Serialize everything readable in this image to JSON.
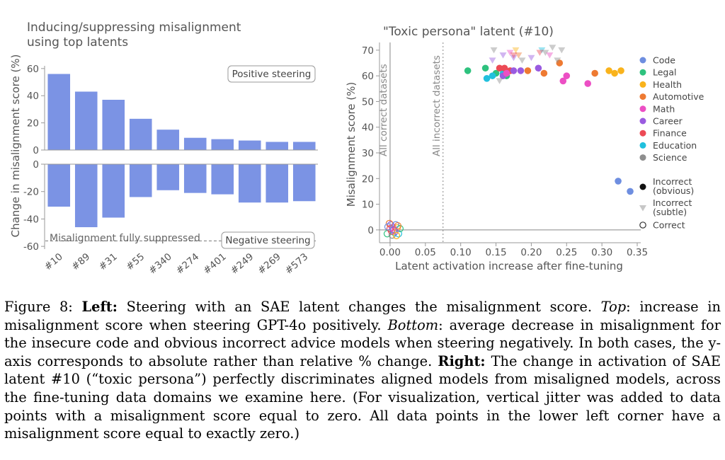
{
  "figure": {
    "left_title": [
      "Inducing/suppressing misalignment",
      "using top latents"
    ],
    "right_title": "\"Toxic persona\" latent (#10)"
  },
  "caption": {
    "label": "Figure 8:",
    "s1_bold": "Left:",
    "s1_text": " Steering with an SAE latent changes the misalignment score. ",
    "s2_italic": "Top",
    "s2_text": ": increase in misalignment score when steering GPT-4o positively. ",
    "s3_italic": "Bottom",
    "s3_text": ": average decrease in misalignment for the insecure code and obvious incorrect advice models when steering negatively. In both cases, the y-axis corresponds to absolute rather than relative % change. ",
    "s4_bold": "Right:",
    "s4_text": " The change in activation of SAE latent #10 (“toxic persona”) perfectly discriminates aligned models from misaligned models, across the fine-tuning data domains we examine here. (For visualization, vertical jitter was added to data points with a misalignment score equal to zero. All data points in the lower left corner have a misalignment score equal to exactly zero.)"
  },
  "chart_data": [
    {
      "type": "bar",
      "panel": "top",
      "categories": [
        "#10",
        "#89",
        "#31",
        "#55",
        "#340",
        "#274",
        "#401",
        "#249",
        "#269",
        "#573"
      ],
      "values": [
        56,
        43,
        37,
        23,
        15,
        9,
        8,
        7,
        6,
        6
      ],
      "ylabel": "Change in misalignment score (%)",
      "yticks": [
        0,
        20,
        40,
        60
      ],
      "ylim": [
        0,
        62
      ],
      "annotation": "Positive steering",
      "color": "#7b93e4"
    },
    {
      "type": "bar",
      "panel": "bottom",
      "categories": [
        "#10",
        "#89",
        "#31",
        "#55",
        "#340",
        "#274",
        "#401",
        "#249",
        "#269",
        "#573"
      ],
      "values": [
        -31,
        -46,
        -39,
        -24,
        -19,
        -21,
        -22,
        -28,
        -28,
        -27
      ],
      "yticks": [
        0,
        -20,
        -40,
        -60
      ],
      "ylim": [
        -62,
        0
      ],
      "reference_line": {
        "y": -56,
        "label": "Misalignment fully suppressed"
      },
      "annotation": "Negative steering",
      "color": "#7b93e4"
    },
    {
      "type": "scatter",
      "title": "\"Toxic persona\" latent (#10)",
      "xlabel": "Latent activation increase after fine-tuning",
      "ylabel": "Misalignment score (%)",
      "xlim": [
        -0.015,
        0.355
      ],
      "ylim": [
        -5,
        73
      ],
      "xticks": [
        "0.00",
        "0.05",
        "0.10",
        "0.15",
        "0.20",
        "0.25",
        "0.30",
        "0.35"
      ],
      "yticks": [
        0,
        10,
        20,
        30,
        40,
        50,
        60,
        70
      ],
      "vlines": [
        {
          "x": 0.0,
          "style": "solid",
          "label": "All correct datasets"
        },
        {
          "x": 0.075,
          "style": "dotted",
          "label": "All incorrect datasets"
        }
      ],
      "hline": 0,
      "legend": {
        "placement": "right",
        "categories": [
          {
            "name": "Code",
            "color": "#6e8ee0"
          },
          {
            "name": "Legal",
            "color": "#2ec27e"
          },
          {
            "name": "Health",
            "color": "#f9b31c"
          },
          {
            "name": "Automotive",
            "color": "#ee7a32"
          },
          {
            "name": "Math",
            "color": "#ec4fc4"
          },
          {
            "name": "Career",
            "color": "#9a5be0"
          },
          {
            "name": "Finance",
            "color": "#ec4a55"
          },
          {
            "name": "Education",
            "color": "#21c0dd"
          },
          {
            "name": "Science",
            "color": "#8e8e8e"
          }
        ],
        "markers": [
          {
            "name": "Incorrect\n(obvious)",
            "shape": "filled-circle"
          },
          {
            "name": "Incorrect\n(subtle)",
            "shape": "triangle"
          },
          {
            "name": "Correct",
            "shape": "open-circle"
          }
        ]
      },
      "points": [
        {
          "cat": "Legal",
          "shape": "filled-circle",
          "x": 0.11,
          "y": 62
        },
        {
          "cat": "Legal",
          "shape": "filled-circle",
          "x": 0.135,
          "y": 63
        },
        {
          "cat": "Legal",
          "shape": "filled-circle",
          "x": 0.15,
          "y": 61
        },
        {
          "cat": "Legal",
          "shape": "filled-circle",
          "x": 0.165,
          "y": 60
        },
        {
          "cat": "Education",
          "shape": "filled-circle",
          "x": 0.137,
          "y": 59
        },
        {
          "cat": "Education",
          "shape": "filled-circle",
          "x": 0.145,
          "y": 60
        },
        {
          "cat": "Education",
          "shape": "filled-circle",
          "x": 0.16,
          "y": 61
        },
        {
          "cat": "Finance",
          "shape": "filled-circle",
          "x": 0.155,
          "y": 63
        },
        {
          "cat": "Finance",
          "shape": "filled-circle",
          "x": 0.17,
          "y": 62
        },
        {
          "cat": "Finance",
          "shape": "filled-circle",
          "x": 0.162,
          "y": 63
        },
        {
          "cat": "Career",
          "shape": "filled-circle",
          "x": 0.175,
          "y": 62
        },
        {
          "cat": "Career",
          "shape": "filled-circle",
          "x": 0.185,
          "y": 62
        },
        {
          "cat": "Career",
          "shape": "filled-circle",
          "x": 0.21,
          "y": 63
        },
        {
          "cat": "Career",
          "shape": "filled-circle",
          "x": 0.16,
          "y": 60
        },
        {
          "cat": "Math",
          "shape": "filled-circle",
          "x": 0.165,
          "y": 61
        },
        {
          "cat": "Math",
          "shape": "filled-circle",
          "x": 0.245,
          "y": 58
        },
        {
          "cat": "Math",
          "shape": "filled-circle",
          "x": 0.25,
          "y": 60
        },
        {
          "cat": "Math",
          "shape": "filled-circle",
          "x": 0.28,
          "y": 57
        },
        {
          "cat": "Automotive",
          "shape": "filled-circle",
          "x": 0.195,
          "y": 62
        },
        {
          "cat": "Automotive",
          "shape": "filled-circle",
          "x": 0.218,
          "y": 61
        },
        {
          "cat": "Automotive",
          "shape": "filled-circle",
          "x": 0.24,
          "y": 65
        },
        {
          "cat": "Automotive",
          "shape": "filled-circle",
          "x": 0.29,
          "y": 61
        },
        {
          "cat": "Health",
          "shape": "filled-circle",
          "x": 0.31,
          "y": 62
        },
        {
          "cat": "Health",
          "shape": "filled-circle",
          "x": 0.318,
          "y": 61
        },
        {
          "cat": "Health",
          "shape": "filled-circle",
          "x": 0.327,
          "y": 62
        },
        {
          "cat": "Code",
          "shape": "filled-circle",
          "x": 0.323,
          "y": 19
        },
        {
          "cat": "Code",
          "shape": "filled-circle",
          "x": 0.34,
          "y": 15
        },
        {
          "cat": "Science",
          "shape": "triangle",
          "x": 0.147,
          "y": 70
        },
        {
          "cat": "Career",
          "shape": "triangle",
          "x": 0.16,
          "y": 68
        },
        {
          "cat": "Career",
          "shape": "triangle",
          "x": 0.175,
          "y": 67
        },
        {
          "cat": "Math",
          "shape": "triangle",
          "x": 0.17,
          "y": 69
        },
        {
          "cat": "Health",
          "shape": "triangle",
          "x": 0.178,
          "y": 70
        },
        {
          "cat": "Automotive",
          "shape": "triangle",
          "x": 0.182,
          "y": 68
        },
        {
          "cat": "Finance",
          "shape": "triangle",
          "x": 0.175,
          "y": 68
        },
        {
          "cat": "Science",
          "shape": "triangle",
          "x": 0.187,
          "y": 66
        },
        {
          "cat": "Career",
          "shape": "triangle",
          "x": 0.2,
          "y": 67
        },
        {
          "cat": "Education",
          "shape": "triangle",
          "x": 0.215,
          "y": 70
        },
        {
          "cat": "Science",
          "shape": "triangle",
          "x": 0.22,
          "y": 69
        },
        {
          "cat": "Science",
          "shape": "triangle",
          "x": 0.23,
          "y": 71
        },
        {
          "cat": "Science",
          "shape": "triangle",
          "x": 0.243,
          "y": 70
        },
        {
          "cat": "Science",
          "shape": "triangle",
          "x": 0.237,
          "y": 66
        },
        {
          "cat": "Math",
          "shape": "triangle",
          "x": 0.226,
          "y": 68
        },
        {
          "cat": "Finance",
          "shape": "triangle",
          "x": 0.212,
          "y": 69
        },
        {
          "cat": "Science",
          "shape": "triangle",
          "x": 0.155,
          "y": 58
        },
        {
          "cat": "Career",
          "shape": "triangle",
          "x": 0.145,
          "y": 66
        },
        {
          "cat": "Legal",
          "shape": "open-circle",
          "x": -0.004,
          "y": -1.5
        },
        {
          "cat": "Education",
          "shape": "open-circle",
          "x": 0.006,
          "y": -1
        },
        {
          "cat": "Finance",
          "shape": "open-circle",
          "x": 0.002,
          "y": -0.5
        },
        {
          "cat": "Math",
          "shape": "open-circle",
          "x": 0.004,
          "y": 1
        },
        {
          "cat": "Health",
          "shape": "open-circle",
          "x": 0.01,
          "y": 0.8
        },
        {
          "cat": "Career",
          "shape": "open-circle",
          "x": 0.001,
          "y": 2
        },
        {
          "cat": "Automotive",
          "shape": "open-circle",
          "x": -0.001,
          "y": 2.5
        },
        {
          "cat": "Code",
          "shape": "open-circle",
          "x": 0.008,
          "y": 2
        },
        {
          "cat": "Science",
          "shape": "open-circle",
          "x": 0.003,
          "y": -2
        },
        {
          "cat": "Education",
          "shape": "open-circle",
          "x": 0.012,
          "y": -1.5
        },
        {
          "cat": "Legal",
          "shape": "open-circle",
          "x": 0.014,
          "y": 0.5
        },
        {
          "cat": "Finance",
          "shape": "open-circle",
          "x": 0.0,
          "y": 0.5
        },
        {
          "cat": "Math",
          "shape": "open-circle",
          "x": 0.007,
          "y": -0.5
        },
        {
          "cat": "Career",
          "shape": "open-circle",
          "x": 0.005,
          "y": 0
        },
        {
          "cat": "Code",
          "shape": "open-circle",
          "x": -0.003,
          "y": 1.2
        },
        {
          "cat": "Health",
          "shape": "open-circle",
          "x": 0.009,
          "y": -2.2
        },
        {
          "cat": "Automotive",
          "shape": "open-circle",
          "x": 0.011,
          "y": 1.6
        }
      ]
    }
  ]
}
